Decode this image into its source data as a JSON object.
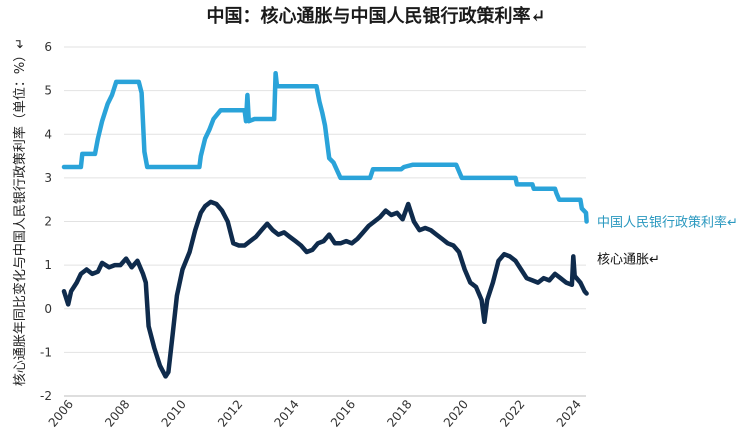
{
  "chart_data": {
    "type": "line",
    "title": "中国：核心通胀与中国人民银行政策利率↵",
    "ylabel": "核心通胀年同比变化与中国人民银行政策利率（单位：%）↵",
    "xlabel": "",
    "xlim": [
      2006,
      2024.5
    ],
    "ylim": [
      -2,
      6
    ],
    "yticks": [
      "6",
      "5",
      "4",
      "3",
      "2",
      "1",
      "0",
      "-1",
      "-2"
    ],
    "xticks": [
      "2006",
      "2008",
      "2010",
      "2012",
      "2014",
      "2016",
      "2018",
      "2020",
      "2022",
      "2024"
    ],
    "grid": true,
    "legend": "end-of-line labels, right",
    "series": [
      {
        "name": "中国人民银行政策利率↵",
        "color": "#2aa3d9",
        "label_color": "#2a98bf",
        "points": [
          [
            2006.0,
            3.25
          ],
          [
            2006.6,
            3.25
          ],
          [
            2006.65,
            3.55
          ],
          [
            2007.1,
            3.55
          ],
          [
            2007.2,
            3.9
          ],
          [
            2007.35,
            4.3
          ],
          [
            2007.55,
            4.7
          ],
          [
            2007.7,
            4.9
          ],
          [
            2007.85,
            5.2
          ],
          [
            2008.65,
            5.2
          ],
          [
            2008.75,
            4.95
          ],
          [
            2008.85,
            3.6
          ],
          [
            2008.95,
            3.25
          ],
          [
            2010.8,
            3.25
          ],
          [
            2010.85,
            3.5
          ],
          [
            2011.0,
            3.9
          ],
          [
            2011.15,
            4.1
          ],
          [
            2011.3,
            4.35
          ],
          [
            2011.55,
            4.55
          ],
          [
            2012.4,
            4.55
          ],
          [
            2012.45,
            4.3
          ],
          [
            2012.5,
            4.9
          ],
          [
            2012.55,
            4.3
          ],
          [
            2012.75,
            4.35
          ],
          [
            2013.45,
            4.35
          ],
          [
            2013.5,
            5.4
          ],
          [
            2013.55,
            5.1
          ],
          [
            2014.95,
            5.1
          ],
          [
            2015.05,
            4.75
          ],
          [
            2015.15,
            4.5
          ],
          [
            2015.25,
            4.2
          ],
          [
            2015.4,
            3.45
          ],
          [
            2015.55,
            3.35
          ],
          [
            2015.8,
            3.0
          ],
          [
            2016.85,
            3.0
          ],
          [
            2016.95,
            3.2
          ],
          [
            2017.95,
            3.2
          ],
          [
            2018.05,
            3.25
          ],
          [
            2018.35,
            3.3
          ],
          [
            2019.9,
            3.3
          ],
          [
            2020.1,
            3.0
          ],
          [
            2022.0,
            3.0
          ],
          [
            2022.05,
            2.85
          ],
          [
            2022.6,
            2.85
          ],
          [
            2022.65,
            2.75
          ],
          [
            2023.4,
            2.75
          ],
          [
            2023.45,
            2.65
          ],
          [
            2023.55,
            2.5
          ],
          [
            2024.3,
            2.5
          ],
          [
            2024.35,
            2.3
          ],
          [
            2024.5,
            2.2
          ],
          [
            2024.52,
            2.0
          ]
        ]
      },
      {
        "name": "核心通胀↵",
        "color": "#0f2b4c",
        "label_color": "#111111",
        "points": [
          [
            2006.0,
            0.4
          ],
          [
            2006.15,
            0.1
          ],
          [
            2006.25,
            0.4
          ],
          [
            2006.45,
            0.6
          ],
          [
            2006.6,
            0.8
          ],
          [
            2006.8,
            0.9
          ],
          [
            2007.0,
            0.8
          ],
          [
            2007.2,
            0.85
          ],
          [
            2007.35,
            1.05
          ],
          [
            2007.6,
            0.95
          ],
          [
            2007.8,
            1.0
          ],
          [
            2008.0,
            1.0
          ],
          [
            2008.2,
            1.15
          ],
          [
            2008.4,
            0.95
          ],
          [
            2008.6,
            1.1
          ],
          [
            2008.8,
            0.8
          ],
          [
            2008.9,
            0.6
          ],
          [
            2009.0,
            -0.4
          ],
          [
            2009.2,
            -0.9
          ],
          [
            2009.4,
            -1.3
          ],
          [
            2009.6,
            -1.55
          ],
          [
            2009.7,
            -1.45
          ],
          [
            2009.85,
            -0.6
          ],
          [
            2010.0,
            0.3
          ],
          [
            2010.2,
            0.9
          ],
          [
            2010.45,
            1.3
          ],
          [
            2010.65,
            1.8
          ],
          [
            2010.85,
            2.2
          ],
          [
            2011.0,
            2.35
          ],
          [
            2011.2,
            2.45
          ],
          [
            2011.4,
            2.4
          ],
          [
            2011.6,
            2.25
          ],
          [
            2011.8,
            2.0
          ],
          [
            2012.0,
            1.5
          ],
          [
            2012.2,
            1.45
          ],
          [
            2012.4,
            1.45
          ],
          [
            2012.6,
            1.55
          ],
          [
            2012.8,
            1.65
          ],
          [
            2013.0,
            1.8
          ],
          [
            2013.2,
            1.95
          ],
          [
            2013.4,
            1.8
          ],
          [
            2013.6,
            1.7
          ],
          [
            2013.8,
            1.75
          ],
          [
            2014.0,
            1.65
          ],
          [
            2014.2,
            1.55
          ],
          [
            2014.4,
            1.45
          ],
          [
            2014.6,
            1.3
          ],
          [
            2014.8,
            1.35
          ],
          [
            2015.0,
            1.5
          ],
          [
            2015.2,
            1.55
          ],
          [
            2015.4,
            1.7
          ],
          [
            2015.6,
            1.5
          ],
          [
            2015.8,
            1.5
          ],
          [
            2016.0,
            1.55
          ],
          [
            2016.2,
            1.5
          ],
          [
            2016.4,
            1.6
          ],
          [
            2016.6,
            1.75
          ],
          [
            2016.8,
            1.9
          ],
          [
            2017.0,
            2.0
          ],
          [
            2017.2,
            2.1
          ],
          [
            2017.4,
            2.25
          ],
          [
            2017.6,
            2.15
          ],
          [
            2017.8,
            2.2
          ],
          [
            2018.0,
            2.05
          ],
          [
            2018.2,
            2.4
          ],
          [
            2018.4,
            2.0
          ],
          [
            2018.6,
            1.8
          ],
          [
            2018.8,
            1.85
          ],
          [
            2019.0,
            1.8
          ],
          [
            2019.2,
            1.7
          ],
          [
            2019.4,
            1.6
          ],
          [
            2019.6,
            1.5
          ],
          [
            2019.8,
            1.45
          ],
          [
            2020.0,
            1.3
          ],
          [
            2020.2,
            0.9
          ],
          [
            2020.4,
            0.6
          ],
          [
            2020.6,
            0.5
          ],
          [
            2020.8,
            0.2
          ],
          [
            2020.9,
            -0.3
          ],
          [
            2021.0,
            0.2
          ],
          [
            2021.2,
            0.6
          ],
          [
            2021.4,
            1.1
          ],
          [
            2021.6,
            1.25
          ],
          [
            2021.8,
            1.2
          ],
          [
            2022.0,
            1.1
          ],
          [
            2022.2,
            0.9
          ],
          [
            2022.4,
            0.7
          ],
          [
            2022.6,
            0.65
          ],
          [
            2022.8,
            0.6
          ],
          [
            2023.0,
            0.7
          ],
          [
            2023.2,
            0.65
          ],
          [
            2023.4,
            0.8
          ],
          [
            2023.6,
            0.7
          ],
          [
            2023.8,
            0.6
          ],
          [
            2024.0,
            0.55
          ],
          [
            2024.05,
            1.2
          ],
          [
            2024.1,
            0.75
          ],
          [
            2024.3,
            0.6
          ],
          [
            2024.45,
            0.4
          ],
          [
            2024.52,
            0.35
          ]
        ]
      }
    ]
  }
}
